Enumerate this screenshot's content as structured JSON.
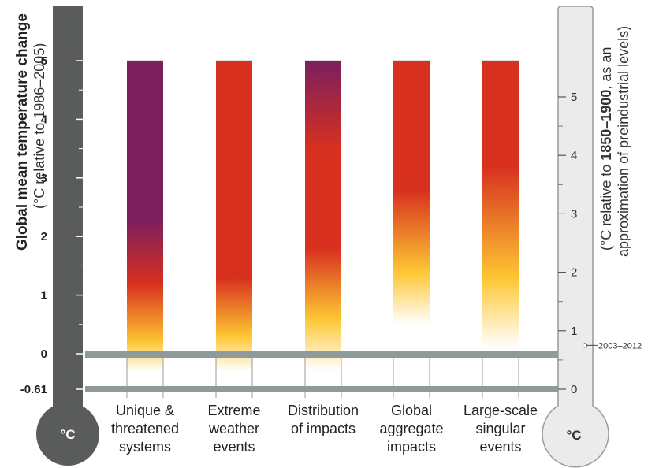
{
  "chart_data": {
    "type": "bar",
    "y_left_label": "Global mean temperature change",
    "y_left_sublabel": "(°C relative to 1986–2005)",
    "y_right_label_prefix": "(°C relative to ",
    "y_right_label_bold": "1850–1900",
    "y_right_label_suffix": ", as an",
    "y_right_label_line2": "approximation of preindustrial levels)",
    "left_ticks": [
      "5",
      "4",
      "3",
      "2",
      "1",
      "0",
      "-0.61"
    ],
    "right_ticks": [
      "5",
      "4",
      "3",
      "2",
      "1",
      "0"
    ],
    "thermometer_unit_left": "°C",
    "thermometer_unit_right": "°C",
    "annotation": "2003–2012",
    "annotation_value_right_axis": 0.75,
    "ylim_left": [
      -0.61,
      5
    ],
    "reference_lines_left": [
      0,
      -0.61
    ],
    "categories": [
      [
        "Unique &",
        "threatened",
        "systems"
      ],
      [
        "Extreme",
        "weather",
        "events"
      ],
      [
        "Distribution",
        "of impacts"
      ],
      [
        "Global",
        "aggregate",
        "impacts"
      ],
      [
        "Large-scale",
        "singular",
        "events"
      ]
    ],
    "bar_top_value": 5,
    "risk_colors": {
      "undetectable": "#ffffff",
      "moderate": "#fdc632",
      "high": "#d7301f",
      "very_high": "#7b1f5e"
    },
    "bars": [
      {
        "stops": [
          [
            -0.3,
            "#ffffff"
          ],
          [
            0.2,
            "#fdc632"
          ],
          [
            1.2,
            "#d7301f"
          ],
          [
            2.3,
            "#7b1f5e"
          ],
          [
            5,
            "#7b1f5e"
          ]
        ]
      },
      {
        "stops": [
          [
            -0.3,
            "#ffffff"
          ],
          [
            0.3,
            "#fdc632"
          ],
          [
            1.3,
            "#d7301f"
          ],
          [
            5,
            "#d7301f"
          ]
        ]
      },
      {
        "stops": [
          [
            -0.3,
            "#ffffff"
          ],
          [
            0.6,
            "#fdc632"
          ],
          [
            1.8,
            "#d7301f"
          ],
          [
            3.5,
            "#d7301f"
          ],
          [
            5,
            "#7b1f5e"
          ]
        ]
      },
      {
        "stops": [
          [
            0.5,
            "#ffffff"
          ],
          [
            1.4,
            "#fdc632"
          ],
          [
            2.8,
            "#d7301f"
          ],
          [
            5,
            "#d7301f"
          ]
        ]
      },
      {
        "stops": [
          [
            0.1,
            "#ffffff"
          ],
          [
            1.3,
            "#fdc632"
          ],
          [
            3.2,
            "#d7301f"
          ],
          [
            5,
            "#d7301f"
          ]
        ]
      }
    ]
  }
}
